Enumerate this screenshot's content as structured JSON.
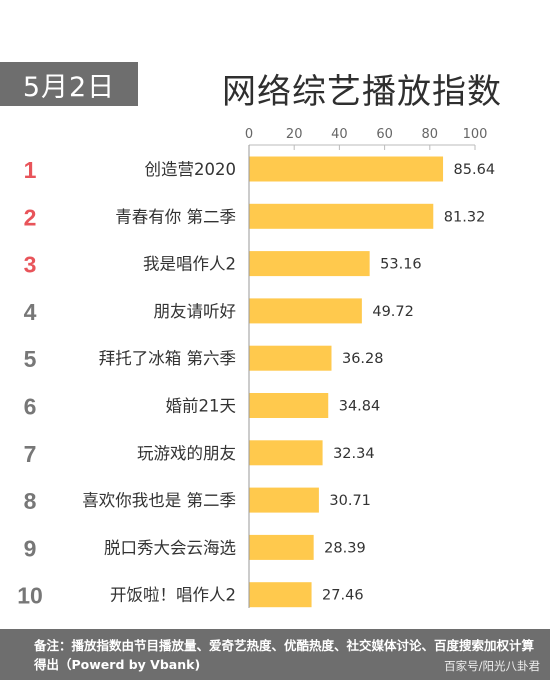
{
  "header": {
    "date": "5月2日",
    "title": "网络综艺播放指数"
  },
  "chart_data": {
    "type": "bar",
    "orientation": "horizontal",
    "title": "网络综艺播放指数",
    "ranks": [
      "1",
      "2",
      "3",
      "4",
      "5",
      "6",
      "7",
      "8",
      "9",
      "10"
    ],
    "categories": [
      "创造营2020",
      "青春有你 第二季",
      "我是唱作人2",
      "朋友请听好",
      "拜托了冰箱 第六季",
      "婚前21天",
      "玩游戏的朋友",
      "喜欢你我也是 第二季",
      "脱口秀大会云海选",
      "开饭啦！唱作人2"
    ],
    "values": [
      85.64,
      81.32,
      53.16,
      49.72,
      36.28,
      34.84,
      32.34,
      30.71,
      28.39,
      27.46
    ],
    "value_labels": [
      "85.64",
      "81.32",
      "53.16",
      "49.72",
      "36.28",
      "34.84",
      "32.34",
      "30.71",
      "28.39",
      "27.46"
    ],
    "xlim": [
      0,
      100
    ],
    "ticks": [
      "0",
      "20",
      "40",
      "60",
      "80",
      "100"
    ],
    "grid": false,
    "colors": {
      "bar": "#ffc94d",
      "rank_top": "#e8545a",
      "rank_other": "#777777"
    }
  },
  "footer": {
    "note": "备注：播放指数由节目播放量、爱奇艺热度、优酷热度、社交媒体讨论、百度搜索加权计算得出（Powerd by Vbank)",
    "source": "百家号/阳光八卦君"
  }
}
